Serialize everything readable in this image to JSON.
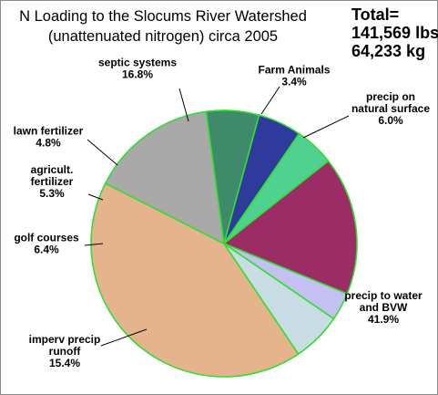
{
  "chart_data": {
    "type": "pie",
    "title_line1": "N Loading to the Slocums River Watershed",
    "title_line2": "(unattenuated nitrogen) circa 2005",
    "total_label": "Total=",
    "total_lbs": "141,569 lbs",
    "total_kg": "64,233 kg",
    "slices": [
      {
        "name": "precip to water and BVW",
        "lines": [
          "precip to water",
          "and BVW"
        ],
        "value": 41.9,
        "pct_label": "41.9%",
        "color": "#e6b48c"
      },
      {
        "name": "imperv precip runoff",
        "lines": [
          "imperv precip",
          "runoff"
        ],
        "value": 15.4,
        "pct_label": "15.4%",
        "color": "#a9a9a9"
      },
      {
        "name": "golf courses",
        "lines": [
          "golf courses"
        ],
        "value": 6.4,
        "pct_label": "6.4%",
        "color": "#3f8a6a"
      },
      {
        "name": "agricult. fertilizer",
        "lines": [
          "agricult.",
          "fertilizer"
        ],
        "value": 5.3,
        "pct_label": "5.3%",
        "color": "#2e3a9c"
      },
      {
        "name": "lawn fertilizer",
        "lines": [
          "lawn fertilizer"
        ],
        "value": 4.8,
        "pct_label": "4.8%",
        "color": "#4fd18f"
      },
      {
        "name": "septic systems",
        "lines": [
          "septic systems"
        ],
        "value": 16.8,
        "pct_label": "16.8%",
        "color": "#9b2c66"
      },
      {
        "name": "Farm Animals",
        "lines": [
          "Farm Animals"
        ],
        "value": 3.4,
        "pct_label": "3.4%",
        "color": "#c4c0f2"
      },
      {
        "name": "precip on natural surface",
        "lines": [
          "precip on",
          "natural surface"
        ],
        "value": 6.0,
        "pct_label": "6.0%",
        "color": "#c8dde3"
      }
    ],
    "slice_border_color": "#33dd33",
    "legend": "none"
  }
}
